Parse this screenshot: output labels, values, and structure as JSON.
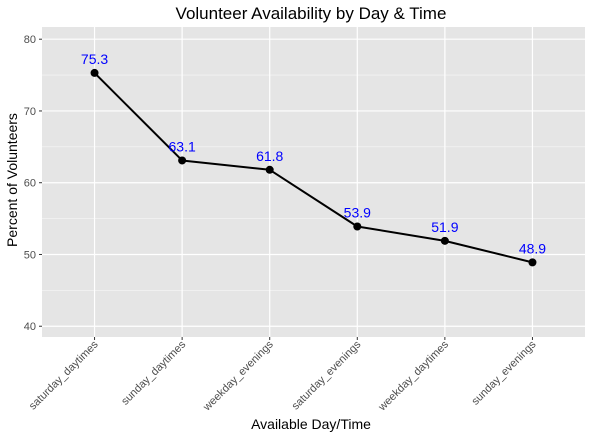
{
  "chart_data": {
    "type": "line",
    "title": "Volunteer Availability by Day & Time",
    "xlabel": "Available Day/Time",
    "ylabel": "Percent of Volunteers",
    "categories": [
      "saturday_daytimes",
      "sunday_daytimes",
      "weekday_evenings",
      "saturday_evenings",
      "weekday_daytimes",
      "sunday_evenings"
    ],
    "values": [
      75.3,
      63.1,
      61.8,
      53.9,
      51.9,
      48.9
    ],
    "data_labels": [
      "75.3",
      "63.1",
      "61.8",
      "53.9",
      "51.9",
      "48.9"
    ],
    "ylim": [
      38.5,
      81.7
    ],
    "yticks": [
      40,
      50,
      60,
      70,
      80
    ],
    "ytick_labels": [
      "40",
      "50",
      "60",
      "70",
      "80"
    ],
    "grid": true,
    "colors": {
      "panel": "#e5e5e5",
      "grid_major": "#ffffff",
      "line": "#000000",
      "point": "#000000",
      "data_label": "#0000ff",
      "text": "#000000",
      "tick_text": "#4d4d4d"
    }
  }
}
